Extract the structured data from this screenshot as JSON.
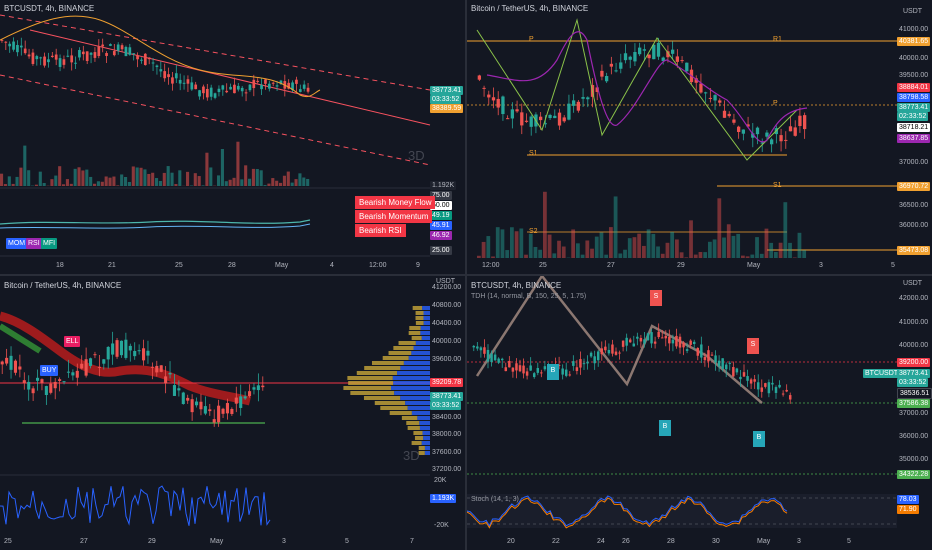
{
  "panes": {
    "top_left": {
      "title": "BTCUSDT, 4h, BINANCE",
      "price_tags": [
        "38773.41",
        "03:33:52",
        "38389.59"
      ],
      "indicator_values": [
        "1.192K",
        "75.00",
        "50.00",
        "49.19",
        "45.91",
        "46.92",
        "25.00"
      ],
      "indicator_labels": [
        "MOM",
        "RSI",
        "MFI"
      ],
      "alerts": [
        "Bearish Money Flow",
        "Bearish Momentum",
        "Bearish RSI"
      ],
      "x_ticks": [
        "18",
        "21",
        "25",
        "28",
        "May",
        "4",
        "12:00",
        "9"
      ],
      "watermark": "3D"
    },
    "top_right": {
      "title": "Bitcoin / TetherUS, 4h, BINANCE",
      "currency": "USDT",
      "y_ticks": [
        "42000.00",
        "41000.00",
        "40000.00",
        "39500.00",
        "39000.00",
        "38000.00",
        "37000.00",
        "36000.00",
        "36500.00",
        "36000.00",
        "35500.00"
      ],
      "price_tags": [
        "40381.65",
        "38884.01",
        "38798.58",
        "38773.41",
        "02:33:52",
        "38718.21",
        "38637.85",
        "36970.72",
        "35473.08"
      ],
      "annotations": [
        "P",
        "R1",
        "S1",
        "S2",
        "P",
        "S1"
      ],
      "x_ticks": [
        "12:00",
        "25",
        "27",
        "29",
        "May",
        "3",
        "5"
      ]
    },
    "bottom_left": {
      "title": "Bitcoin / TetherUS, 4h, BINANCE",
      "currency": "USDT",
      "y_ticks": [
        "41200.00",
        "40800.00",
        "40400.00",
        "40000.00",
        "39600.00",
        "39200.00",
        "38800.00",
        "38400.00",
        "38000.00",
        "37600.00",
        "37200.00"
      ],
      "price_tags": [
        "39209.78",
        "38773.41",
        "03:33:52"
      ],
      "osc_ticks": [
        "20K",
        "1.193K",
        "-20K"
      ],
      "signals": [
        "BUY",
        "ELL"
      ],
      "x_ticks": [
        "25",
        "27",
        "29",
        "May",
        "3",
        "5",
        "7"
      ],
      "watermark": "3D"
    },
    "bottom_right": {
      "title": "BTCUSDT, 4h, BINANCE",
      "subtitle": "TDH (14, normal, B, 150, 25, 5, 1.75)",
      "currency": "USDT",
      "y_ticks": [
        "42000.00",
        "41000.00",
        "40000.00",
        "39000.00",
        "38000.00",
        "37000.00",
        "36000.00",
        "35000.00",
        "34000.00"
      ],
      "price_tags": [
        "39200.00",
        "BTCUSDT",
        "38773.41",
        "03:33:52",
        "38536.51",
        "37586.38",
        "34322.28",
        "78.03",
        "71.90"
      ],
      "stoch_label": "Stoch (14, 1, 3)",
      "x_ticks": [
        "20",
        "22",
        "24",
        "26",
        "28",
        "30",
        "May",
        "3",
        "5"
      ],
      "signal_letters": [
        "S",
        "B",
        "B",
        "S",
        "B"
      ]
    }
  },
  "colors": {
    "bg": "#131722",
    "up": "#26a69a",
    "down": "#ef5350",
    "grid": "#1e222d",
    "accent_blue": "#2962ff"
  }
}
